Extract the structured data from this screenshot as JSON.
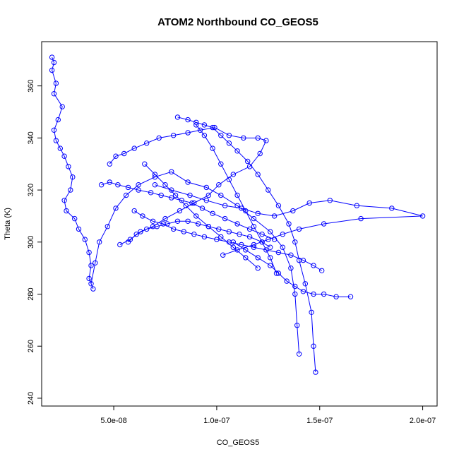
{
  "chart_data": {
    "type": "scatter",
    "title": "ATOM2 Northbound CO_GEOS5",
    "xlabel": "CO_GEOS5",
    "ylabel": "Theta (K)",
    "xlim": [
      1.5e-08,
      2.07e-07
    ],
    "ylim": [
      237,
      377
    ],
    "xticks": [
      5e-08,
      1e-07,
      1.5e-07,
      2e-07
    ],
    "xtick_labels": [
      "5.0e-08",
      "1.0e-07",
      "1.5e-07",
      "2.0e-07"
    ],
    "yticks": [
      240,
      260,
      280,
      300,
      320,
      340,
      360
    ],
    "ytick_labels": [
      "240",
      "260",
      "280",
      "300",
      "320",
      "340",
      "360"
    ],
    "grid": false,
    "series": [
      {
        "color": "#0000ff",
        "marker": "open-circle",
        "line": true,
        "x": [
          2e-08,
          2.1e-08,
          2e-08,
          2.2e-08,
          2.1e-08,
          2.5e-08,
          2.3e-08,
          2.1e-08,
          2.2e-08,
          2.4e-08,
          2.6e-08,
          2.8e-08,
          3e-08,
          2.9e-08,
          2.6e-08,
          2.7e-08,
          3.1e-08,
          3.3e-08,
          3.6e-08,
          3.8e-08,
          3.9e-08,
          3.8e-08,
          4e-08,
          3.9e-08,
          4.1e-08,
          4.3e-08,
          4.7e-08,
          5.1e-08,
          5.6e-08,
          6.2e-08,
          7e-08,
          7.8e-08,
          8.6e-08,
          9.5e-08,
          1.02e-07,
          1.1e-07,
          1.18e-07,
          1.26e-07,
          1.32e-07,
          1.36e-07,
          1.38e-07,
          1.39e-07,
          1.4e-07
        ],
        "y": [
          371,
          369,
          366,
          361,
          357,
          352,
          347,
          343,
          339,
          336,
          333,
          329,
          325,
          320,
          316,
          312,
          309,
          305,
          301,
          296,
          291,
          286,
          282,
          284,
          292,
          300,
          306,
          313,
          318,
          322,
          325,
          327,
          323,
          321,
          318,
          314,
          309,
          304,
          298,
          290,
          280,
          268,
          257
        ]
      },
      {
        "color": "#0000ff",
        "marker": "open-circle",
        "line": true,
        "x": [
          4.8e-08,
          5.1e-08,
          5.5e-08,
          6e-08,
          6.6e-08,
          7.2e-08,
          7.9e-08,
          8.6e-08,
          9.2e-08,
          9.9e-08,
          1.06e-07,
          1.13e-07,
          1.2e-07,
          1.24e-07,
          1.21e-07,
          1.16e-07,
          1.08e-07,
          1.01e-07,
          9.6e-08,
          8.9e-08,
          8.2e-08,
          7.5e-08,
          6.9e-08,
          6.3e-08,
          5.8e-08,
          5.3e-08
        ],
        "y": [
          330,
          333,
          334,
          336,
          338,
          340,
          341,
          342,
          343,
          344,
          341,
          340,
          340,
          339,
          334,
          329,
          326,
          322,
          318,
          315,
          312,
          309,
          306,
          304,
          301,
          299
        ]
      },
      {
        "color": "#0000ff",
        "marker": "open-circle",
        "line": true,
        "x": [
          7e-08,
          7.8e-08,
          8.7e-08,
          9.5e-08,
          1.04e-07,
          1.12e-07,
          1.2e-07,
          1.28e-07,
          1.37e-07,
          1.45e-07,
          1.55e-07,
          1.68e-07,
          1.85e-07,
          2e-07,
          1.7e-07,
          1.52e-07,
          1.4e-07,
          1.32e-07,
          1.25e-07,
          1.18e-07,
          1.1e-07,
          1.03e-07
        ],
        "y": [
          322,
          320,
          318,
          316,
          314,
          313,
          311,
          310,
          312,
          315,
          316,
          314,
          313,
          310,
          309,
          307,
          305,
          303,
          301,
          299,
          297,
          295
        ]
      },
      {
        "color": "#0000ff",
        "marker": "open-circle",
        "line": true,
        "x": [
          8.1e-08,
          8.6e-08,
          9e-08,
          9.4e-08,
          9.8e-08,
          1.02e-07,
          1.06e-07,
          1.1e-07,
          1.15e-07,
          1.2e-07,
          1.25e-07,
          1.3e-07,
          1.35e-07,
          1.38e-07,
          1.4e-07,
          1.43e-07,
          1.46e-07,
          1.47e-07,
          1.48e-07
        ],
        "y": [
          348,
          347,
          346,
          345,
          344,
          341,
          338,
          335,
          331,
          326,
          320,
          314,
          307,
          300,
          293,
          284,
          273,
          260,
          250
        ]
      },
      {
        "color": "#0000ff",
        "marker": "open-circle",
        "line": true,
        "x": [
          1.08e-07,
          1.14e-07,
          1.2e-07,
          1.26e-07,
          1.3e-07,
          1.34e-07,
          1.38e-07,
          1.42e-07,
          1.47e-07,
          1.52e-07,
          1.58e-07,
          1.65e-07
        ],
        "y": [
          300,
          297,
          294,
          291,
          288,
          285,
          283,
          281,
          280,
          280,
          279,
          279
        ]
      },
      {
        "color": "#0000ff",
        "marker": "open-circle",
        "line": true,
        "x": [
          6e-08,
          6.4e-08,
          6.9e-08,
          7.4e-08,
          7.9e-08,
          8.4e-08,
          8.9e-08,
          9.4e-08,
          1e-07,
          1.06e-07,
          1.12e-07,
          1.18e-07,
          1.24e-07,
          1.3e-07,
          1.36e-07,
          1.42e-07,
          1.47e-07,
          1.51e-07
        ],
        "y": [
          312,
          310,
          308,
          307,
          305,
          304,
          303,
          302,
          301,
          300,
          299,
          298,
          297,
          296,
          295,
          293,
          291,
          289
        ]
      },
      {
        "color": "#0000ff",
        "marker": "open-circle",
        "line": true,
        "x": [
          4.4e-08,
          4.8e-08,
          5.2e-08,
          5.7e-08,
          6.2e-08,
          6.8e-08,
          7.3e-08,
          7.8e-08,
          8.3e-08,
          8.8e-08,
          9.3e-08,
          9.8e-08,
          1.04e-07,
          1.1e-07,
          1.16e-07,
          1.22e-07,
          1.28e-07
        ],
        "y": [
          322,
          323,
          322,
          321,
          320,
          319,
          318,
          317,
          316,
          315,
          313,
          311,
          309,
          307,
          305,
          303,
          301
        ]
      },
      {
        "color": "#0000ff",
        "marker": "open-circle",
        "line": true,
        "x": [
          5.7e-08,
          6.1e-08,
          6.6e-08,
          7.1e-08,
          7.6e-08,
          8.1e-08,
          8.6e-08,
          9.1e-08,
          9.6e-08,
          1.01e-07,
          1.06e-07,
          1.11e-07,
          1.16e-07,
          1.22e-07,
          1.26e-07
        ],
        "y": [
          300,
          303,
          305,
          306,
          307,
          308,
          308,
          307,
          306,
          305,
          304,
          303,
          302,
          300,
          298
        ]
      },
      {
        "color": "#0000ff",
        "marker": "open-circle",
        "line": true,
        "x": [
          9e-08,
          9.4e-08,
          9.8e-08,
          1.02e-07,
          1.06e-07,
          1.1e-07,
          1.14e-07,
          1.18e-07,
          1.22e-07,
          1.26e-07,
          1.29e-07
        ],
        "y": [
          345,
          341,
          336,
          330,
          324,
          318,
          312,
          306,
          300,
          294,
          288
        ]
      },
      {
        "color": "#0000ff",
        "marker": "open-circle",
        "line": true,
        "x": [
          6.5e-08,
          7e-08,
          7.5e-08,
          8e-08,
          8.5e-08,
          9e-08,
          9.6e-08,
          1.02e-07,
          1.08e-07,
          1.14e-07,
          1.2e-07
        ],
        "y": [
          330,
          326,
          322,
          318,
          314,
          310,
          306,
          302,
          298,
          294,
          290
        ]
      }
    ]
  }
}
